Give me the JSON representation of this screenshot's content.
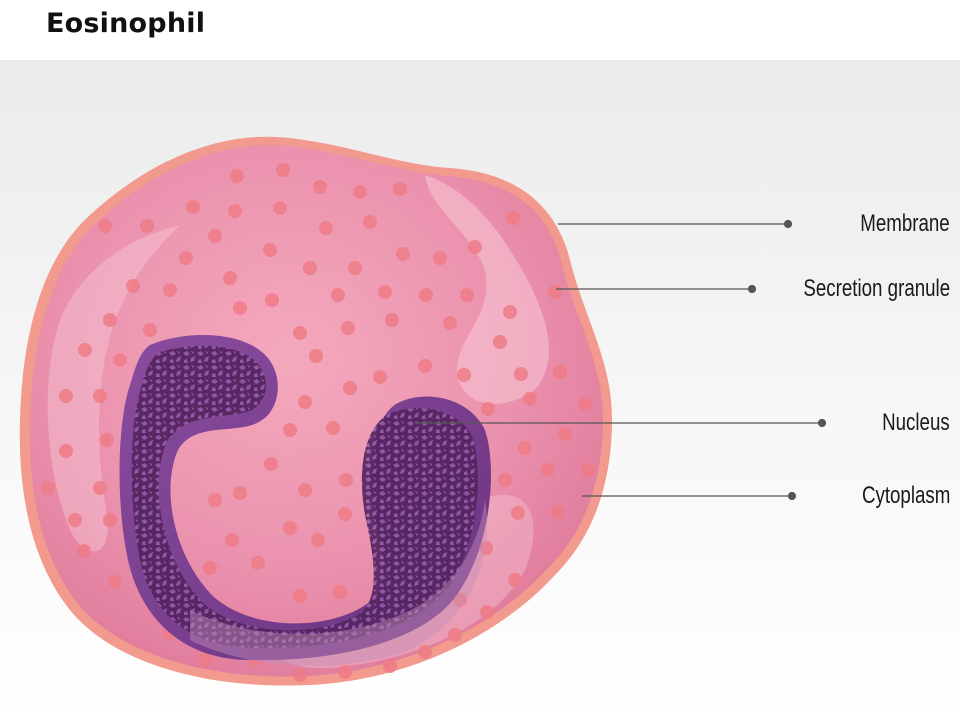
{
  "title": "Eosinophil",
  "labels": {
    "membrane": "Membrane",
    "secretion_granule": "Secretion granule",
    "nucleus": "Nucleus",
    "cytoplasm": "Cytoplasm"
  },
  "colors": {
    "membrane": "#f29a8e",
    "cytoplasm": "#e5829f",
    "granule": "#ef7b86",
    "nucleus": "#7a3f8e",
    "chromatin": "#4a1e5c",
    "leader_line": "#555555"
  }
}
